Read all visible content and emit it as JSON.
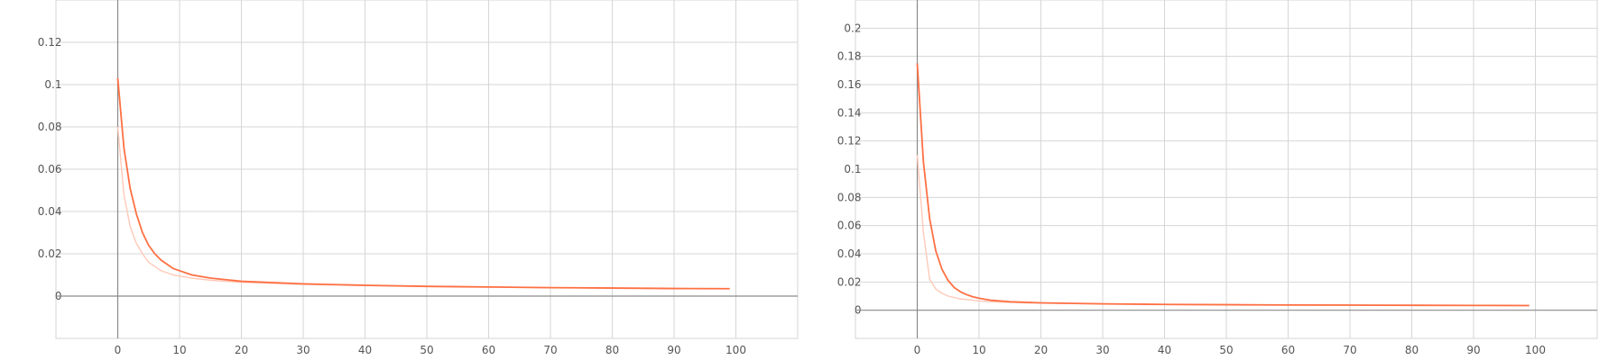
{
  "chart_data": [
    {
      "type": "line",
      "title": "",
      "xlabel": "",
      "ylabel": "",
      "xlim": [
        -10,
        110
      ],
      "ylim": [
        -0.02,
        0.14
      ],
      "x_ticks": [
        0,
        10,
        20,
        30,
        40,
        50,
        60,
        70,
        80,
        90,
        100
      ],
      "y_ticks": [
        0,
        0.02,
        0.04,
        0.06,
        0.08,
        0.1,
        0.12
      ],
      "grid": true,
      "series": [
        {
          "color": "#ff7043",
          "x": [
            0,
            1,
            2,
            3,
            4,
            5,
            6,
            7,
            8,
            9,
            10,
            12,
            15,
            20,
            30,
            40,
            50,
            60,
            70,
            80,
            90,
            99
          ],
          "y": [
            0.103,
            0.07,
            0.051,
            0.039,
            0.03,
            0.024,
            0.02,
            0.017,
            0.015,
            0.013,
            0.012,
            0.01,
            0.0085,
            0.007,
            0.0058,
            0.0051,
            0.0046,
            0.0043,
            0.004,
            0.0038,
            0.0036,
            0.0035
          ]
        },
        {
          "color": "#ffc9b8",
          "x": [
            0,
            1,
            2,
            3,
            4,
            5,
            6,
            7,
            8,
            9,
            10,
            12,
            15,
            20,
            30,
            40,
            50,
            60,
            70,
            80,
            90,
            99
          ],
          "y": [
            0.08,
            0.048,
            0.033,
            0.025,
            0.02,
            0.016,
            0.014,
            0.012,
            0.011,
            0.01,
            0.0095,
            0.0085,
            0.0075,
            0.0065,
            0.0055,
            0.005,
            0.0046,
            0.0043,
            0.004,
            0.0038,
            0.0036,
            0.0035
          ]
        }
      ]
    },
    {
      "type": "line",
      "title": "",
      "xlabel": "",
      "ylabel": "",
      "xlim": [
        -10,
        110
      ],
      "ylim": [
        -0.02,
        0.22
      ],
      "x_ticks": [
        0,
        10,
        20,
        30,
        40,
        50,
        60,
        70,
        80,
        90,
        100
      ],
      "y_ticks": [
        0,
        0.02,
        0.04,
        0.06,
        0.08,
        0.1,
        0.12,
        0.14,
        0.16,
        0.18,
        0.2
      ],
      "grid": true,
      "series": [
        {
          "color": "#ff7043",
          "x": [
            0,
            1,
            2,
            3,
            4,
            5,
            6,
            7,
            8,
            9,
            10,
            12,
            15,
            20,
            30,
            40,
            50,
            60,
            70,
            80,
            90,
            99
          ],
          "y": [
            0.175,
            0.105,
            0.065,
            0.042,
            0.029,
            0.021,
            0.016,
            0.013,
            0.011,
            0.0095,
            0.0085,
            0.007,
            0.006,
            0.0052,
            0.0045,
            0.0041,
            0.0039,
            0.0037,
            0.0036,
            0.0035,
            0.0034,
            0.0033
          ]
        },
        {
          "color": "#ffc9b8",
          "x": [
            0,
            1,
            2,
            3,
            4,
            5,
            6,
            7,
            8,
            9,
            10,
            12,
            15,
            20,
            30,
            40,
            50,
            60,
            70,
            80,
            90,
            99
          ],
          "y": [
            0.11,
            0.055,
            0.022,
            0.015,
            0.012,
            0.01,
            0.009,
            0.008,
            0.0075,
            0.007,
            0.0065,
            0.006,
            0.0055,
            0.005,
            0.0045,
            0.0041,
            0.0039,
            0.0037,
            0.0036,
            0.0035,
            0.0034,
            0.0033
          ]
        }
      ]
    }
  ]
}
